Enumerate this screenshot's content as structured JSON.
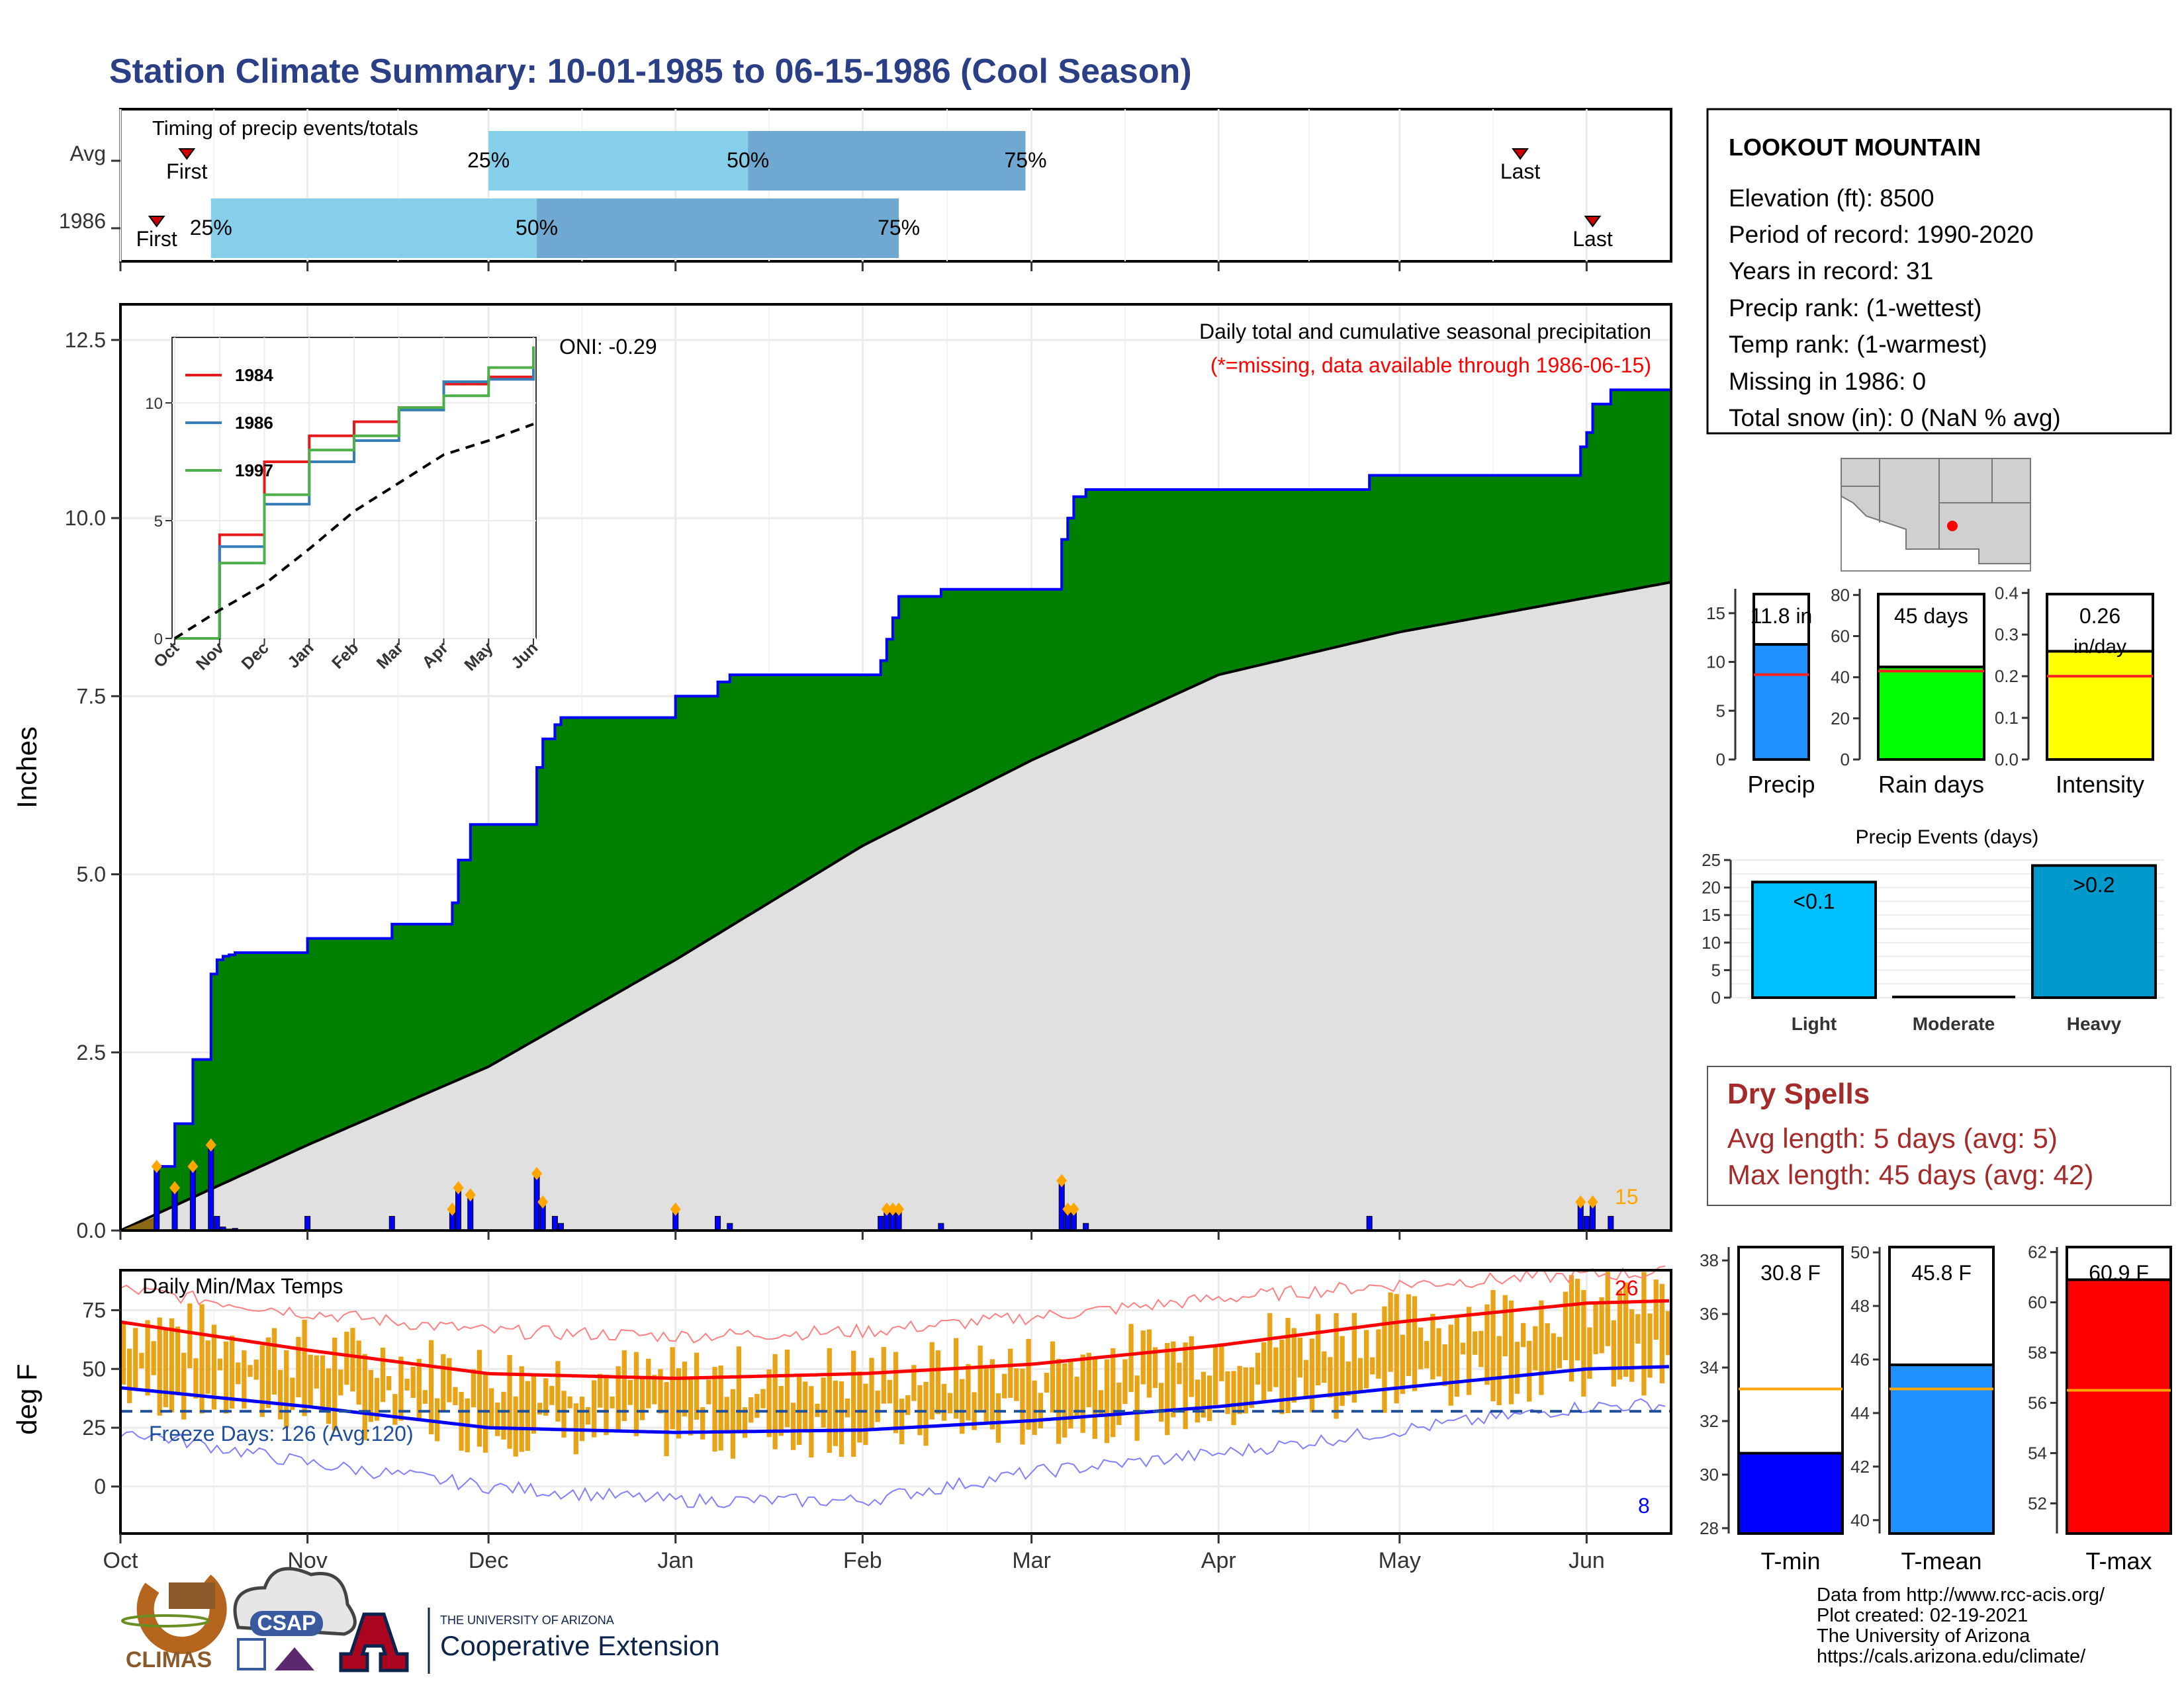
{
  "title": "Station Climate Summary: 10-01-1985 to 06-15-1986 (Cool Season)",
  "colors": {
    "title": "#2b3f86",
    "cumulative_fill": "#008000",
    "cumulative_line": "#0000ff",
    "avg_fill": "#e0e0e0",
    "bar_light": "#87ceeb",
    "bar_dark": "#6fa8d0",
    "daily_bar": "#0000ff",
    "diamond": "#ffa500",
    "temp_bar": "#e8a317",
    "tmax": "#ff0000",
    "tmin": "#0000ff",
    "dry_spell": "#a52a2a"
  },
  "timing": {
    "title": "Timing of precip events/totals",
    "rows": [
      {
        "label": "Avg",
        "first": "Oct 12",
        "p25": "Dec 1",
        "p50": "Jan 13",
        "p75": "Feb 28",
        "last": "May 21",
        "first_label": "First",
        "p25_label": "25%",
        "p50_label": "50%",
        "p75_label": "75%",
        "last_label": "Last"
      },
      {
        "label": "1986",
        "first": "Oct 7",
        "p25": "Oct 16",
        "p50": "Dec 9",
        "p75": "Feb 7",
        "last": "Jun 2",
        "first_label": "First",
        "p25_label": "25%",
        "p50_label": "50%",
        "p75_label": "75%",
        "last_label": "Last"
      }
    ]
  },
  "precip_chart": {
    "ylabel": "Inches",
    "yticks": [
      "0.0",
      "2.5",
      "5.0",
      "7.5",
      "10.0",
      "12.5"
    ],
    "note1": "Daily total and cumulative seasonal precipitation",
    "note2": "(*=missing, data available through 1986-06-15)",
    "oni": "ONI: -0.29",
    "end_count": "15"
  },
  "inset": {
    "yticks": [
      "0",
      "5",
      "10"
    ],
    "xticks": [
      "Oct",
      "Nov",
      "Dec",
      "Jan",
      "Feb",
      "Mar",
      "Apr",
      "May",
      "Jun"
    ],
    "legend": [
      {
        "name": "1984",
        "color": "#e41a1c"
      },
      {
        "name": "1986",
        "color": "#377eb8"
      },
      {
        "name": "1997",
        "color": "#4daf4a"
      }
    ]
  },
  "temp_chart": {
    "ylabel": "deg F",
    "title": "Daily Min/Max Temps",
    "yticks": [
      "0",
      "25",
      "50",
      "75"
    ],
    "freeze_label": "Freeze Days: 126 (Avg:120)",
    "max_count": "26",
    "min_count": "8"
  },
  "xaxis": {
    "months": [
      "Oct",
      "Nov",
      "Dec",
      "Jan",
      "Feb",
      "Mar",
      "Apr",
      "May",
      "Jun"
    ]
  },
  "station": {
    "name": "LOOKOUT MOUNTAIN",
    "lines": [
      "Elevation (ft): 8500",
      "Period of record: 1990-2020",
      "Years in record: 31",
      "Precip rank:  (1-wettest)",
      "Temp rank:  (1-warmest)",
      "Missing in 1986: 0",
      "Total snow (in): 0 (NaN % avg)"
    ]
  },
  "small_bars": [
    {
      "name": "Precip",
      "label": "11.8 in",
      "value": 11.8,
      "avg": 8.7,
      "ymax": 17.5,
      "yticks": [
        "0",
        "5",
        "10",
        "15"
      ],
      "tickvals": [
        0,
        5,
        10,
        15
      ],
      "color": "#1e90ff"
    },
    {
      "name": "Rain days",
      "label": "45 days",
      "value": 45,
      "avg": 43,
      "ymax": 83,
      "yticks": [
        "0",
        "20",
        "40",
        "60",
        "80"
      ],
      "tickvals": [
        0,
        20,
        40,
        60,
        80
      ],
      "color": "#00ff00"
    },
    {
      "name": "Intensity",
      "label": "0.26",
      "label2": "in/day",
      "value": 0.26,
      "avg": 0.2,
      "ymax": 0.41,
      "yticks": [
        "0.0",
        "0.1",
        "0.2",
        "0.3",
        "0.4"
      ],
      "tickvals": [
        0,
        0.1,
        0.2,
        0.3,
        0.4
      ],
      "color": "#ffff00"
    }
  ],
  "precip_events": {
    "title": "Precip Events (days)",
    "yticks": [
      "0",
      "5",
      "10",
      "15",
      "20",
      "25"
    ],
    "bars": [
      {
        "name": "Light",
        "label": "<0.1",
        "value": 21,
        "color": "#00bfff"
      },
      {
        "name": "Moderate",
        "label": "",
        "value": 0,
        "color": "#1e90ff"
      },
      {
        "name": "Heavy",
        "label": ">0.2",
        "value": 24,
        "color": "#0099cc"
      }
    ]
  },
  "dry_spells": {
    "title": "Dry Spells",
    "avg_line": "Avg length: 5 days (avg: 5)",
    "max_line": "Max length: 45 days (avg: 42)"
  },
  "temp_bars": [
    {
      "name": "T-min",
      "label": "30.8 F",
      "value": 30.8,
      "avg": 33.2,
      "ymin": 27.8,
      "ymax": 38.5,
      "yticks": [
        "28",
        "30",
        "32",
        "34",
        "36",
        "38"
      ],
      "tickvals": [
        28,
        30,
        32,
        34,
        36,
        38
      ],
      "color": "#0000ff"
    },
    {
      "name": "T-mean",
      "label": "45.8 F",
      "value": 45.8,
      "avg": 44.9,
      "ymin": 39.5,
      "ymax": 50.2,
      "yticks": [
        "40",
        "42",
        "44",
        "46",
        "48",
        "50"
      ],
      "tickvals": [
        40,
        42,
        44,
        46,
        48,
        50
      ],
      "color": "#1e90ff"
    },
    {
      "name": "T-max",
      "label": "60.9 F",
      "value": 60.9,
      "avg": 56.5,
      "ymin": 50.8,
      "ymax": 62.2,
      "yticks": [
        "52",
        "54",
        "56",
        "58",
        "60",
        "62"
      ],
      "tickvals": [
        52,
        54,
        56,
        58,
        60,
        62
      ],
      "color": "#ff0000"
    }
  ],
  "credits": [
    "Data from http://www.rcc-acis.org/",
    "Plot created: 02-19-2021",
    "The University of Arizona",
    "https://cals.arizona.edu/climate/"
  ],
  "logos": {
    "climas": "CLIMAS",
    "csap": "CSAP",
    "ua_small": "THE UNIVERSITY OF ARIZONA",
    "ua_big": "Cooperative Extension"
  },
  "chart_data": [
    {
      "type": "area",
      "title": "Daily total and cumulative seasonal precipitation",
      "ylabel": "Inches",
      "ylim": [
        0,
        13
      ],
      "x_range": [
        "1985-10-01",
        "1986-06-15"
      ],
      "series": [
        {
          "name": "1986",
          "x": [
            "1985-10-01",
            "1985-10-07",
            "1985-10-10",
            "1985-10-13",
            "1985-10-16",
            "1985-10-17",
            "1985-10-18",
            "1985-10-19",
            "1985-10-20",
            "1985-11-01",
            "1985-11-15",
            "1985-11-25",
            "1985-11-26",
            "1985-11-28",
            "1985-12-01",
            "1985-12-09",
            "1985-12-10",
            "1985-12-12",
            "1985-12-13",
            "1985-12-15",
            "1986-01-01",
            "1986-01-08",
            "1986-01-10",
            "1986-02-04",
            "1986-02-05",
            "1986-02-06",
            "1986-02-07",
            "1986-02-14",
            "1986-03-06",
            "1986-03-07",
            "1986-03-08",
            "1986-03-10",
            "1986-04-26",
            "1986-05-01",
            "1986-05-31",
            "1986-06-01",
            "1986-06-02",
            "1986-06-05",
            "1986-06-15"
          ],
          "values": [
            0,
            0.9,
            1.5,
            2.4,
            3.6,
            3.8,
            3.85,
            3.87,
            3.9,
            4.1,
            4.3,
            4.6,
            5.2,
            5.7,
            5.7,
            6.5,
            6.9,
            7.1,
            7.2,
            7.2,
            7.5,
            7.7,
            7.8,
            8.0,
            8.3,
            8.6,
            8.9,
            9.0,
            9.7,
            10.0,
            10.3,
            10.4,
            10.6,
            10.6,
            11.0,
            11.2,
            11.6,
            11.8,
            11.8
          ]
        },
        {
          "name": "Average",
          "x": [
            "1985-10-01",
            "1985-11-01",
            "1985-12-01",
            "1986-01-01",
            "1986-02-01",
            "1986-03-01",
            "1986-04-01",
            "1986-05-01",
            "1986-06-15"
          ],
          "values": [
            0,
            1.2,
            2.3,
            3.8,
            5.4,
            6.6,
            7.8,
            8.4,
            9.1
          ]
        }
      ]
    },
    {
      "type": "line",
      "title": "",
      "categories": [
        "Oct",
        "Nov",
        "Dec",
        "Jan",
        "Feb",
        "Mar",
        "Apr",
        "May",
        "Jun"
      ],
      "ylim": [
        0,
        12.5
      ],
      "series": [
        {
          "name": "1984",
          "values": [
            0,
            4.4,
            7.5,
            8.6,
            9.2,
            9.8,
            10.8,
            11.1,
            11.7
          ]
        },
        {
          "name": "1986",
          "values": [
            0,
            3.9,
            5.7,
            7.5,
            8.4,
            9.7,
            10.9,
            11.0,
            11.8
          ]
        },
        {
          "name": "1997",
          "values": [
            0,
            3.2,
            6.1,
            8.0,
            8.6,
            9.8,
            10.3,
            11.5,
            12.4
          ]
        },
        {
          "name": "Average",
          "values": [
            0,
            1.2,
            2.3,
            3.8,
            5.4,
            6.6,
            7.8,
            8.4,
            9.1
          ]
        }
      ]
    },
    {
      "type": "line",
      "title": "Daily Min/Max Temps",
      "ylabel": "deg F",
      "ylim": [
        -20,
        90
      ],
      "categories": [
        "Oct",
        "Nov",
        "Dec",
        "Jan",
        "Feb",
        "Mar",
        "Apr",
        "May",
        "Jun"
      ],
      "series": [
        {
          "name": "Avg max",
          "values": [
            70,
            58,
            48,
            46,
            48,
            52,
            60,
            70,
            78
          ]
        },
        {
          "name": "Avg min",
          "values": [
            42,
            34,
            25,
            23,
            24,
            28,
            34,
            42,
            50
          ]
        },
        {
          "name": "Record max",
          "values": [
            84,
            74,
            66,
            64,
            66,
            72,
            80,
            86,
            90
          ]
        },
        {
          "name": "Record min",
          "values": [
            24,
            10,
            0,
            -6,
            -6,
            6,
            14,
            24,
            34
          ]
        }
      ],
      "freeze_threshold": 32
    },
    {
      "type": "bar",
      "title": "Precip Events (days)",
      "categories": [
        "Light",
        "Moderate",
        "Heavy"
      ],
      "values": [
        21,
        0,
        24
      ],
      "ylim": [
        0,
        25
      ]
    },
    {
      "type": "bar",
      "categories": [
        "Precip",
        "Rain days",
        "Intensity"
      ],
      "values": [
        11.8,
        45,
        0.26
      ]
    },
    {
      "type": "bar",
      "categories": [
        "T-min",
        "T-mean",
        "T-max"
      ],
      "values": [
        30.8,
        45.8,
        60.9
      ]
    }
  ]
}
